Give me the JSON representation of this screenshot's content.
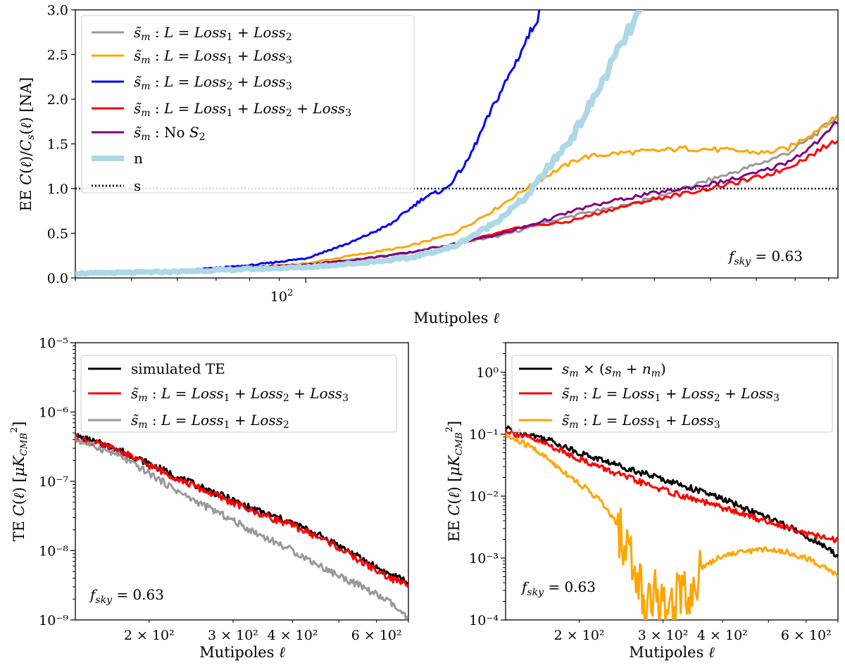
{
  "chart_data": [
    {
      "type": "line",
      "id": "top",
      "xscale": "log",
      "xlim": [
        40,
        830
      ],
      "ylim": [
        0,
        3.0
      ],
      "ylabel": "EE C(ℓ)/C_s(ℓ) [NA]",
      "xlabel": "Mutipoles ℓ",
      "yticks": [
        0.0,
        0.5,
        1.0,
        1.5,
        2.0,
        2.5,
        3.0
      ],
      "ytick_labels": [
        "0.0",
        "0.5",
        "1.0",
        "1.5",
        "2.0",
        "2.5",
        "3.0"
      ],
      "xtick_major_label": "10²",
      "annotation": "f_sky = 0.63",
      "legend_position": "top-left",
      "hline": {
        "name": "s",
        "y": 1.0,
        "style": "dotted",
        "color": "#000000"
      },
      "series": [
        {
          "name": "s̃m : L = Loss1 + Loss2",
          "color": "#999999",
          "width": 3,
          "points": [
            [
              40,
              0.05
            ],
            [
              60,
              0.08
            ],
            [
              80,
              0.12
            ],
            [
              100,
              0.15
            ],
            [
              120,
              0.2
            ],
            [
              150,
              0.28
            ],
            [
              180,
              0.38
            ],
            [
              220,
              0.48
            ],
            [
              260,
              0.62
            ],
            [
              300,
              0.72
            ],
            [
              350,
              0.8
            ],
            [
              400,
              0.9
            ],
            [
              450,
              1.0
            ],
            [
              500,
              1.1
            ],
            [
              560,
              1.2
            ],
            [
              620,
              1.3
            ],
            [
              680,
              1.4
            ],
            [
              740,
              1.55
            ],
            [
              790,
              1.7
            ],
            [
              830,
              1.82
            ]
          ]
        },
        {
          "name": "s̃m : L = Loss1 + Loss3",
          "color": "#ffa500",
          "width": 3,
          "points": [
            [
              40,
              0.05
            ],
            [
              60,
              0.08
            ],
            [
              80,
              0.12
            ],
            [
              100,
              0.16
            ],
            [
              120,
              0.25
            ],
            [
              150,
              0.35
            ],
            [
              180,
              0.5
            ],
            [
              210,
              0.75
            ],
            [
              240,
              1.0
            ],
            [
              270,
              1.2
            ],
            [
              300,
              1.35
            ],
            [
              350,
              1.4
            ],
            [
              400,
              1.42
            ],
            [
              450,
              1.45
            ],
            [
              500,
              1.44
            ],
            [
              560,
              1.42
            ],
            [
              620,
              1.4
            ],
            [
              680,
              1.45
            ],
            [
              740,
              1.6
            ],
            [
              790,
              1.72
            ],
            [
              830,
              1.8
            ]
          ]
        },
        {
          "name": "s̃m : L = Loss2 + Loss3",
          "color": "#0000ff",
          "width": 3,
          "points": [
            [
              40,
              0.05
            ],
            [
              60,
              0.08
            ],
            [
              80,
              0.14
            ],
            [
              100,
              0.22
            ],
            [
              120,
              0.4
            ],
            [
              140,
              0.6
            ],
            [
              160,
              0.9
            ],
            [
              175,
              1.0
            ],
            [
              190,
              1.3
            ],
            [
              210,
              1.9
            ],
            [
              230,
              2.4
            ],
            [
              255,
              3.0
            ]
          ]
        },
        {
          "name": "s̃m : L = Loss1 + Loss2 + Loss3",
          "color": "#ff0000",
          "width": 3,
          "points": [
            [
              40,
              0.05
            ],
            [
              60,
              0.07
            ],
            [
              80,
              0.1
            ],
            [
              100,
              0.13
            ],
            [
              120,
              0.18
            ],
            [
              150,
              0.22
            ],
            [
              170,
              0.3
            ],
            [
              200,
              0.45
            ],
            [
              240,
              0.58
            ],
            [
              280,
              0.62
            ],
            [
              330,
              0.75
            ],
            [
              380,
              0.85
            ],
            [
              430,
              0.92
            ],
            [
              480,
              0.98
            ],
            [
              540,
              1.05
            ],
            [
              600,
              1.12
            ],
            [
              660,
              1.2
            ],
            [
              720,
              1.32
            ],
            [
              780,
              1.45
            ],
            [
              830,
              1.55
            ]
          ]
        },
        {
          "name": "s̃m : No S2",
          "color": "#800080",
          "width": 3,
          "points": [
            [
              40,
              0.05
            ],
            [
              60,
              0.08
            ],
            [
              80,
              0.12
            ],
            [
              100,
              0.15
            ],
            [
              120,
              0.2
            ],
            [
              150,
              0.28
            ],
            [
              180,
              0.38
            ],
            [
              220,
              0.5
            ],
            [
              260,
              0.65
            ],
            [
              300,
              0.78
            ],
            [
              350,
              0.88
            ],
            [
              400,
              0.95
            ],
            [
              450,
              1.0
            ],
            [
              500,
              1.05
            ],
            [
              560,
              1.12
            ],
            [
              620,
              1.2
            ],
            [
              680,
              1.3
            ],
            [
              740,
              1.45
            ],
            [
              790,
              1.6
            ],
            [
              830,
              1.75
            ]
          ]
        },
        {
          "name": "n",
          "color": "#add8e6",
          "width": 8,
          "points": [
            [
              40,
              0.05
            ],
            [
              60,
              0.07
            ],
            [
              80,
              0.1
            ],
            [
              100,
              0.12
            ],
            [
              120,
              0.16
            ],
            [
              150,
              0.22
            ],
            [
              180,
              0.35
            ],
            [
              210,
              0.6
            ],
            [
              240,
              0.9
            ],
            [
              260,
              1.2
            ],
            [
              290,
              1.6
            ],
            [
              320,
              2.1
            ],
            [
              350,
              2.6
            ],
            [
              380,
              3.0
            ]
          ]
        }
      ]
    },
    {
      "type": "line",
      "id": "bottom-left",
      "xscale": "log",
      "yscale": "log",
      "xlim": [
        140,
        700
      ],
      "ylim": [
        1e-09,
        1e-05
      ],
      "ylabel": "TE C(ℓ) [μK_CMB²]",
      "xlabel": "Mutipoles ℓ",
      "ytick_labels": [
        "10⁻⁹",
        "10⁻⁸",
        "10⁻⁷",
        "10⁻⁶",
        "10⁻⁵"
      ],
      "xticks": [
        200,
        300,
        400,
        600
      ],
      "xtick_labels": [
        "2 × 10²",
        "3 × 10²",
        "4 × 10²",
        "6 × 10²"
      ],
      "annotation": "f_sky = 0.63",
      "legend_position": "top-left",
      "series": [
        {
          "name": "simulated TE",
          "color": "#000000",
          "width": 3,
          "points": [
            [
              140,
              4.5e-07
            ],
            [
              170,
              3e-07
            ],
            [
              200,
              1.8e-07
            ],
            [
              240,
              1e-07
            ],
            [
              280,
              6.5e-08
            ],
            [
              330,
              4e-08
            ],
            [
              400,
              2.5e-08
            ],
            [
              480,
              1.4e-08
            ],
            [
              560,
              7.5e-09
            ],
            [
              640,
              4.5e-09
            ],
            [
              700,
              3.5e-09
            ]
          ]
        },
        {
          "name": "s̃m : L = Loss1 + Loss2 + Loss3",
          "color": "#ff0000",
          "width": 3,
          "points": [
            [
              140,
              4.3e-07
            ],
            [
              170,
              2.9e-07
            ],
            [
              200,
              1.7e-07
            ],
            [
              240,
              9.5e-08
            ],
            [
              280,
              6e-08
            ],
            [
              330,
              3.7e-08
            ],
            [
              400,
              2.3e-08
            ],
            [
              480,
              1.3e-08
            ],
            [
              560,
              6.8e-09
            ],
            [
              640,
              4e-09
            ],
            [
              700,
              3.2e-09
            ]
          ]
        },
        {
          "name": "s̃m : L = Loss1 + Loss2",
          "color": "#999999",
          "width": 3,
          "points": [
            [
              140,
              4e-07
            ],
            [
              170,
              2.5e-07
            ],
            [
              200,
              1.3e-07
            ],
            [
              240,
              6e-08
            ],
            [
              280,
              3.5e-08
            ],
            [
              330,
              1.9e-08
            ],
            [
              400,
              1e-08
            ],
            [
              480,
              5e-09
            ],
            [
              560,
              3e-09
            ],
            [
              640,
              1.8e-09
            ],
            [
              700,
              1e-09
            ]
          ]
        }
      ]
    },
    {
      "type": "line",
      "id": "bottom-right",
      "xscale": "log",
      "yscale": "log",
      "xlim": [
        140,
        700
      ],
      "ylim": [
        0.0001,
        3.0
      ],
      "ylabel": "EE C(ℓ) [μK_CMB²]",
      "xlabel": "Mutipoles ℓ",
      "ytick_labels": [
        "10⁻⁴",
        "10⁻³",
        "10⁻²",
        "10⁻¹",
        "10⁰"
      ],
      "xticks": [
        200,
        300,
        400,
        600
      ],
      "xtick_labels": [
        "2 × 10²",
        "3 × 10²",
        "4 × 10²",
        "6 × 10²"
      ],
      "annotation": "f_sky = 0.63",
      "legend_position": "top-left",
      "series": [
        {
          "name": "s_m × (s_m + n_m)",
          "color": "#000000",
          "width": 3,
          "points": [
            [
              140,
              0.125
            ],
            [
              170,
              0.085
            ],
            [
              200,
              0.05
            ],
            [
              240,
              0.032
            ],
            [
              280,
              0.022
            ],
            [
              330,
              0.015
            ],
            [
              400,
              0.009
            ],
            [
              480,
              0.005
            ],
            [
              560,
              0.003
            ],
            [
              640,
              0.0017
            ],
            [
              700,
              0.0011
            ]
          ]
        },
        {
          "name": "s̃m : L = Loss1 + Loss2 + Loss3",
          "color": "#ff0000",
          "width": 3,
          "points": [
            [
              140,
              0.115
            ],
            [
              170,
              0.07
            ],
            [
              200,
              0.04
            ],
            [
              240,
              0.023
            ],
            [
              280,
              0.015
            ],
            [
              330,
              0.01
            ],
            [
              400,
              0.0065
            ],
            [
              480,
              0.0042
            ],
            [
              560,
              0.003
            ],
            [
              640,
              0.0022
            ],
            [
              700,
              0.0019
            ]
          ]
        },
        {
          "name": "s̃m : L = Loss1 + Loss3",
          "color": "#ffa500",
          "width": 3,
          "points": [
            [
              140,
              0.095
            ],
            [
              160,
              0.06
            ],
            [
              180,
              0.03
            ],
            [
              200,
              0.016
            ],
            [
              220,
              0.009
            ],
            [
              240,
              0.0035
            ],
            [
              260,
              0.0008
            ],
            [
              275,
              0.0002
            ],
            [
              290,
              0.0003
            ],
            [
              305,
              0.0001
            ],
            [
              320,
              0.0003
            ],
            [
              345,
              0.0003
            ],
            [
              360,
              0.0007
            ],
            [
              400,
              0.0011
            ],
            [
              450,
              0.0013
            ],
            [
              500,
              0.0014
            ],
            [
              560,
              0.0012
            ],
            [
              620,
              0.0009
            ],
            [
              680,
              0.0006
            ],
            [
              700,
              0.0005
            ]
          ]
        }
      ]
    }
  ]
}
